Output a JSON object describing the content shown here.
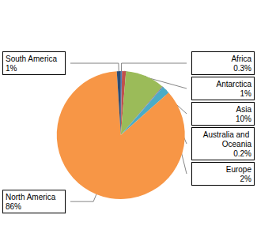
{
  "chart_data": {
    "type": "pie",
    "categories": [
      "Africa",
      "Antarctica",
      "Asia",
      "Australia and Oceania",
      "Europe",
      "North America",
      "South America"
    ],
    "values": [
      0.3,
      1,
      10,
      0.2,
      2,
      86,
      1
    ],
    "value_labels": [
      "0.3%",
      "1%",
      "10%",
      "0.2%",
      "2%",
      "86%",
      "1%"
    ],
    "colors": [
      "#4f81bd",
      "#c0504d",
      "#9bbb59",
      "#8064a2",
      "#4bacc6",
      "#f79646",
      "#2c4d75"
    ],
    "data_labels": true
  }
}
